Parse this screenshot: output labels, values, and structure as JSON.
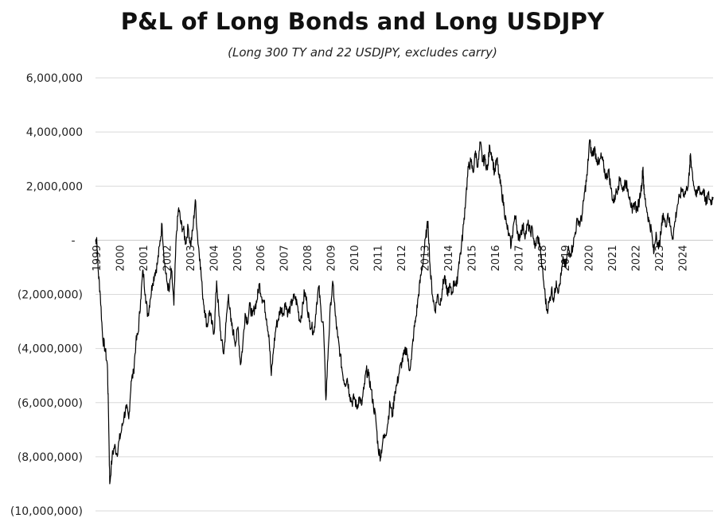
{
  "chart_data": {
    "type": "line",
    "title": "P&L of Long Bonds and Long USDJPY",
    "subtitle": "(Long 300 TY and 22 USDJPY, excludes carry)",
    "xlabel": "",
    "ylabel": "",
    "xlim": [
      1999.0,
      2025.0
    ],
    "ylim": [
      -10000000,
      6000000
    ],
    "grid": true,
    "y_ticks": [
      {
        "value": 6000000,
        "label": "6,000,000"
      },
      {
        "value": 4000000,
        "label": "4,000,000"
      },
      {
        "value": 2000000,
        "label": "2,000,000"
      },
      {
        "value": 0,
        "label": "-"
      },
      {
        "value": -2000000,
        "label": "(2,000,000)"
      },
      {
        "value": -4000000,
        "label": "(4,000,000)"
      },
      {
        "value": -6000000,
        "label": "(6,000,000)"
      },
      {
        "value": -8000000,
        "label": "(8,000,000)"
      },
      {
        "value": -10000000,
        "label": "(10,000,000)"
      }
    ],
    "x_ticks": [
      "1999",
      "2000",
      "2001",
      "2002",
      "2003",
      "2004",
      "2005",
      "2006",
      "2007",
      "2008",
      "2009",
      "2010",
      "2011",
      "2012",
      "2013",
      "2014",
      "2015",
      "2016",
      "2017",
      "2018",
      "2019",
      "2020",
      "2021",
      "2022",
      "2023",
      "2024"
    ],
    "series": [
      {
        "color": "#000000",
        "points": [
          [
            1999.0,
            -50000
          ],
          [
            1999.05,
            100000
          ],
          [
            1999.12,
            -1200000
          ],
          [
            1999.2,
            -2000000
          ],
          [
            1999.3,
            -3600000
          ],
          [
            1999.4,
            -4000000
          ],
          [
            1999.5,
            -4600000
          ],
          [
            1999.55,
            -6500000
          ],
          [
            1999.6,
            -9000000
          ],
          [
            1999.7,
            -8000000
          ],
          [
            1999.8,
            -7600000
          ],
          [
            1999.9,
            -7900000
          ],
          [
            2000.0,
            -7400000
          ],
          [
            2000.1,
            -7000000
          ],
          [
            2000.2,
            -6500000
          ],
          [
            2000.3,
            -6200000
          ],
          [
            2000.4,
            -6600000
          ],
          [
            2000.5,
            -5200000
          ],
          [
            2000.6,
            -4900000
          ],
          [
            2000.7,
            -3800000
          ],
          [
            2000.8,
            -3400000
          ],
          [
            2000.9,
            -2200000
          ],
          [
            2001.0,
            -1100000
          ],
          [
            2001.1,
            -2000000
          ],
          [
            2001.2,
            -2800000
          ],
          [
            2001.3,
            -2200000
          ],
          [
            2001.4,
            -1600000
          ],
          [
            2001.5,
            -1200000
          ],
          [
            2001.6,
            -900000
          ],
          [
            2001.7,
            -200000
          ],
          [
            2001.8,
            600000
          ],
          [
            2001.9,
            -800000
          ],
          [
            2002.0,
            -1500000
          ],
          [
            2002.1,
            -1900000
          ],
          [
            2002.2,
            -1100000
          ],
          [
            2002.3,
            -2400000
          ],
          [
            2002.4,
            200000
          ],
          [
            2002.5,
            1200000
          ],
          [
            2002.6,
            600000
          ],
          [
            2002.7,
            400000
          ],
          [
            2002.8,
            -100000
          ],
          [
            2002.9,
            500000
          ],
          [
            2003.0,
            -200000
          ],
          [
            2003.1,
            400000
          ],
          [
            2003.2,
            1500000
          ],
          [
            2003.3,
            100000
          ],
          [
            2003.4,
            -700000
          ],
          [
            2003.5,
            -1900000
          ],
          [
            2003.6,
            -2600000
          ],
          [
            2003.7,
            -3200000
          ],
          [
            2003.8,
            -2600000
          ],
          [
            2003.9,
            -3100000
          ],
          [
            2004.0,
            -3400000
          ],
          [
            2004.1,
            -1500000
          ],
          [
            2004.2,
            -2800000
          ],
          [
            2004.3,
            -3700000
          ],
          [
            2004.4,
            -4200000
          ],
          [
            2004.5,
            -3000000
          ],
          [
            2004.6,
            -2000000
          ],
          [
            2004.7,
            -3000000
          ],
          [
            2004.8,
            -3400000
          ],
          [
            2004.9,
            -3800000
          ],
          [
            2005.0,
            -3200000
          ],
          [
            2005.1,
            -4600000
          ],
          [
            2005.2,
            -3900000
          ],
          [
            2005.3,
            -2700000
          ],
          [
            2005.4,
            -3000000
          ],
          [
            2005.5,
            -2400000
          ],
          [
            2005.6,
            -2800000
          ],
          [
            2005.7,
            -2500000
          ],
          [
            2005.8,
            -2200000
          ],
          [
            2005.9,
            -1600000
          ],
          [
            2006.0,
            -2100000
          ],
          [
            2006.1,
            -2300000
          ],
          [
            2006.2,
            -2900000
          ],
          [
            2006.3,
            -3500000
          ],
          [
            2006.4,
            -5000000
          ],
          [
            2006.5,
            -4000000
          ],
          [
            2006.6,
            -3200000
          ],
          [
            2006.7,
            -2900000
          ],
          [
            2006.8,
            -2500000
          ],
          [
            2006.9,
            -2700000
          ],
          [
            2007.0,
            -2300000
          ],
          [
            2007.1,
            -2700000
          ],
          [
            2007.2,
            -2500000
          ],
          [
            2007.3,
            -2200000
          ],
          [
            2007.4,
            -2100000
          ],
          [
            2007.5,
            -2400000
          ],
          [
            2007.6,
            -3000000
          ],
          [
            2007.7,
            -2600000
          ],
          [
            2007.8,
            -1900000
          ],
          [
            2007.9,
            -2300000
          ],
          [
            2008.0,
            -3000000
          ],
          [
            2008.1,
            -3200000
          ],
          [
            2008.2,
            -3400000
          ],
          [
            2008.3,
            -2400000
          ],
          [
            2008.4,
            -1700000
          ],
          [
            2008.5,
            -2700000
          ],
          [
            2008.6,
            -3200000
          ],
          [
            2008.7,
            -5900000
          ],
          [
            2008.8,
            -4000000
          ],
          [
            2008.9,
            -2300000
          ],
          [
            2009.0,
            -1600000
          ],
          [
            2009.1,
            -2800000
          ],
          [
            2009.2,
            -3600000
          ],
          [
            2009.3,
            -4200000
          ],
          [
            2009.4,
            -4900000
          ],
          [
            2009.5,
            -5300000
          ],
          [
            2009.6,
            -5100000
          ],
          [
            2009.7,
            -5700000
          ],
          [
            2009.8,
            -6000000
          ],
          [
            2009.9,
            -5800000
          ],
          [
            2010.0,
            -6200000
          ],
          [
            2010.1,
            -5800000
          ],
          [
            2010.2,
            -6100000
          ],
          [
            2010.3,
            -5500000
          ],
          [
            2010.4,
            -4800000
          ],
          [
            2010.5,
            -5000000
          ],
          [
            2010.6,
            -5500000
          ],
          [
            2010.7,
            -6100000
          ],
          [
            2010.8,
            -6600000
          ],
          [
            2010.9,
            -7700000
          ],
          [
            2011.0,
            -8000000
          ],
          [
            2011.1,
            -7400000
          ],
          [
            2011.2,
            -7200000
          ],
          [
            2011.3,
            -6800000
          ],
          [
            2011.4,
            -6000000
          ],
          [
            2011.5,
            -6500000
          ],
          [
            2011.6,
            -5600000
          ],
          [
            2011.7,
            -5300000
          ],
          [
            2011.8,
            -4800000
          ],
          [
            2011.9,
            -4500000
          ],
          [
            2012.0,
            -4200000
          ],
          [
            2012.1,
            -4000000
          ],
          [
            2012.2,
            -4800000
          ],
          [
            2012.3,
            -4400000
          ],
          [
            2012.4,
            -3400000
          ],
          [
            2012.5,
            -2800000
          ],
          [
            2012.6,
            -2000000
          ],
          [
            2012.7,
            -1300000
          ],
          [
            2012.8,
            -700000
          ],
          [
            2012.9,
            100000
          ],
          [
            2013.0,
            700000
          ],
          [
            2013.1,
            -1200000
          ],
          [
            2013.2,
            -2100000
          ],
          [
            2013.3,
            -2600000
          ],
          [
            2013.4,
            -2000000
          ],
          [
            2013.5,
            -2400000
          ],
          [
            2013.6,
            -1800000
          ],
          [
            2013.7,
            -1300000
          ],
          [
            2013.8,
            -2000000
          ],
          [
            2013.9,
            -1700000
          ],
          [
            2014.0,
            -2000000
          ],
          [
            2014.1,
            -1500000
          ],
          [
            2014.2,
            -1700000
          ],
          [
            2014.3,
            -800000
          ],
          [
            2014.4,
            -300000
          ],
          [
            2014.5,
            600000
          ],
          [
            2014.6,
            1700000
          ],
          [
            2014.7,
            2700000
          ],
          [
            2014.8,
            2900000
          ],
          [
            2014.9,
            2500000
          ],
          [
            2015.0,
            3300000
          ],
          [
            2015.1,
            2700000
          ],
          [
            2015.2,
            3600000
          ],
          [
            2015.3,
            2900000
          ],
          [
            2015.4,
            3000000
          ],
          [
            2015.5,
            2600000
          ],
          [
            2015.6,
            3500000
          ],
          [
            2015.7,
            3100000
          ],
          [
            2015.8,
            2500000
          ],
          [
            2015.9,
            3000000
          ],
          [
            2016.0,
            2300000
          ],
          [
            2016.1,
            1800000
          ],
          [
            2016.2,
            1200000
          ],
          [
            2016.3,
            600000
          ],
          [
            2016.4,
            200000
          ],
          [
            2016.5,
            -200000
          ],
          [
            2016.6,
            600000
          ],
          [
            2016.7,
            900000
          ],
          [
            2016.8,
            0
          ],
          [
            2016.9,
            300000
          ],
          [
            2017.0,
            500000
          ],
          [
            2017.1,
            200000
          ],
          [
            2017.2,
            600000
          ],
          [
            2017.3,
            300000
          ],
          [
            2017.4,
            400000
          ],
          [
            2017.5,
            -300000
          ],
          [
            2017.6,
            100000
          ],
          [
            2017.7,
            -100000
          ],
          [
            2017.8,
            -1000000
          ],
          [
            2017.9,
            -1800000
          ],
          [
            2018.0,
            -2600000
          ],
          [
            2018.1,
            -2300000
          ],
          [
            2018.2,
            -1800000
          ],
          [
            2018.3,
            -2200000
          ],
          [
            2018.4,
            -1500000
          ],
          [
            2018.5,
            -1900000
          ],
          [
            2018.6,
            -1300000
          ],
          [
            2018.7,
            -700000
          ],
          [
            2018.8,
            -1000000
          ],
          [
            2018.9,
            -300000
          ],
          [
            2019.0,
            -500000
          ],
          [
            2019.1,
            -200000
          ],
          [
            2019.2,
            300000
          ],
          [
            2019.3,
            800000
          ],
          [
            2019.4,
            600000
          ],
          [
            2019.5,
            1000000
          ],
          [
            2019.6,
            1800000
          ],
          [
            2019.7,
            2400000
          ],
          [
            2019.8,
            3700000
          ],
          [
            2019.9,
            3100000
          ],
          [
            2020.0,
            3400000
          ],
          [
            2020.1,
            3000000
          ],
          [
            2020.2,
            2800000
          ],
          [
            2020.3,
            3100000
          ],
          [
            2020.4,
            2700000
          ],
          [
            2020.5,
            2300000
          ],
          [
            2020.6,
            2600000
          ],
          [
            2020.7,
            1900000
          ],
          [
            2020.8,
            1400000
          ],
          [
            2020.9,
            1700000
          ],
          [
            2021.0,
            2000000
          ],
          [
            2021.1,
            2300000
          ],
          [
            2021.2,
            1800000
          ],
          [
            2021.3,
            2200000
          ],
          [
            2021.4,
            1900000
          ],
          [
            2021.5,
            1600000
          ],
          [
            2021.6,
            1000000
          ],
          [
            2021.7,
            1400000
          ],
          [
            2021.8,
            1100000
          ],
          [
            2021.9,
            1500000
          ],
          [
            2022.0,
            2100000
          ],
          [
            2022.05,
            2700000
          ],
          [
            2022.1,
            1700000
          ],
          [
            2022.2,
            1200000
          ],
          [
            2022.3,
            700000
          ],
          [
            2022.4,
            400000
          ],
          [
            2022.5,
            -500000
          ],
          [
            2022.6,
            300000
          ],
          [
            2022.7,
            -300000
          ],
          [
            2022.8,
            200000
          ],
          [
            2022.9,
            1000000
          ],
          [
            2023.0,
            500000
          ],
          [
            2023.1,
            1000000
          ],
          [
            2023.2,
            500000
          ],
          [
            2023.3,
            100000
          ],
          [
            2023.4,
            700000
          ],
          [
            2023.5,
            1300000
          ],
          [
            2023.6,
            1600000
          ],
          [
            2023.7,
            1900000
          ],
          [
            2023.8,
            1700000
          ],
          [
            2023.9,
            1900000
          ],
          [
            2024.0,
            2400000
          ],
          [
            2024.05,
            3200000
          ],
          [
            2024.1,
            2700000
          ],
          [
            2024.2,
            2000000
          ],
          [
            2024.3,
            1600000
          ],
          [
            2024.4,
            2000000
          ],
          [
            2024.5,
            1700000
          ],
          [
            2024.6,
            1900000
          ],
          [
            2024.7,
            1300000
          ],
          [
            2024.8,
            1700000
          ],
          [
            2024.9,
            1400000
          ],
          [
            2025.0,
            1600000
          ]
        ]
      }
    ]
  }
}
